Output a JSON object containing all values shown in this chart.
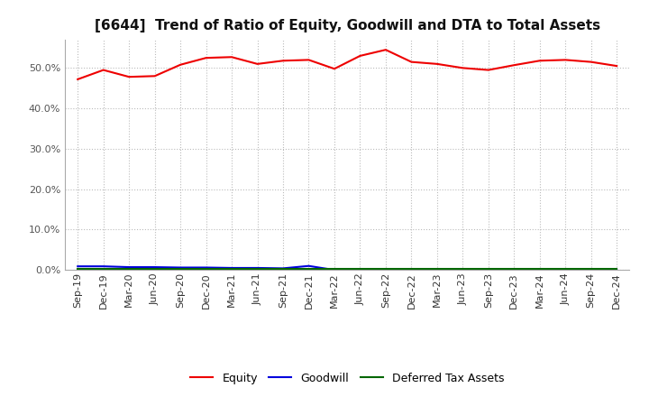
{
  "title": "[6644]  Trend of Ratio of Equity, Goodwill and DTA to Total Assets",
  "x_labels": [
    "Sep-19",
    "Dec-19",
    "Mar-20",
    "Jun-20",
    "Sep-20",
    "Dec-20",
    "Mar-21",
    "Jun-21",
    "Sep-21",
    "Dec-21",
    "Mar-22",
    "Jun-22",
    "Sep-22",
    "Dec-22",
    "Mar-23",
    "Jun-23",
    "Sep-23",
    "Dec-23",
    "Mar-24",
    "Jun-24",
    "Sep-24",
    "Dec-24"
  ],
  "equity": [
    47.2,
    49.5,
    47.8,
    48.0,
    50.8,
    52.5,
    52.7,
    51.0,
    51.8,
    52.0,
    49.8,
    53.0,
    54.5,
    51.5,
    51.0,
    50.0,
    49.5,
    50.7,
    51.8,
    52.0,
    51.5,
    50.5
  ],
  "goodwill": [
    0.9,
    0.9,
    0.7,
    0.7,
    0.6,
    0.6,
    0.5,
    0.5,
    0.4,
    1.0,
    0.0,
    0.0,
    0.0,
    0.0,
    0.0,
    0.0,
    0.0,
    0.0,
    0.0,
    0.0,
    0.0,
    0.0
  ],
  "dta": [
    0.2,
    0.2,
    0.2,
    0.2,
    0.2,
    0.2,
    0.2,
    0.2,
    0.2,
    0.2,
    0.2,
    0.2,
    0.2,
    0.2,
    0.2,
    0.2,
    0.2,
    0.2,
    0.2,
    0.2,
    0.2,
    0.2
  ],
  "equity_color": "#EE0000",
  "goodwill_color": "#0000DD",
  "dta_color": "#006600",
  "ylim": [
    0,
    57
  ],
  "yticks": [
    0.0,
    10.0,
    20.0,
    30.0,
    40.0,
    50.0
  ],
  "background_color": "#FFFFFF",
  "plot_bg_color": "#FFFFFF",
  "grid_major_color": "#BBBBBB",
  "grid_minor_color": "#BBBBBB",
  "legend_labels": [
    "Equity",
    "Goodwill",
    "Deferred Tax Assets"
  ],
  "title_fontsize": 11,
  "tick_fontsize": 8,
  "legend_fontsize": 9
}
